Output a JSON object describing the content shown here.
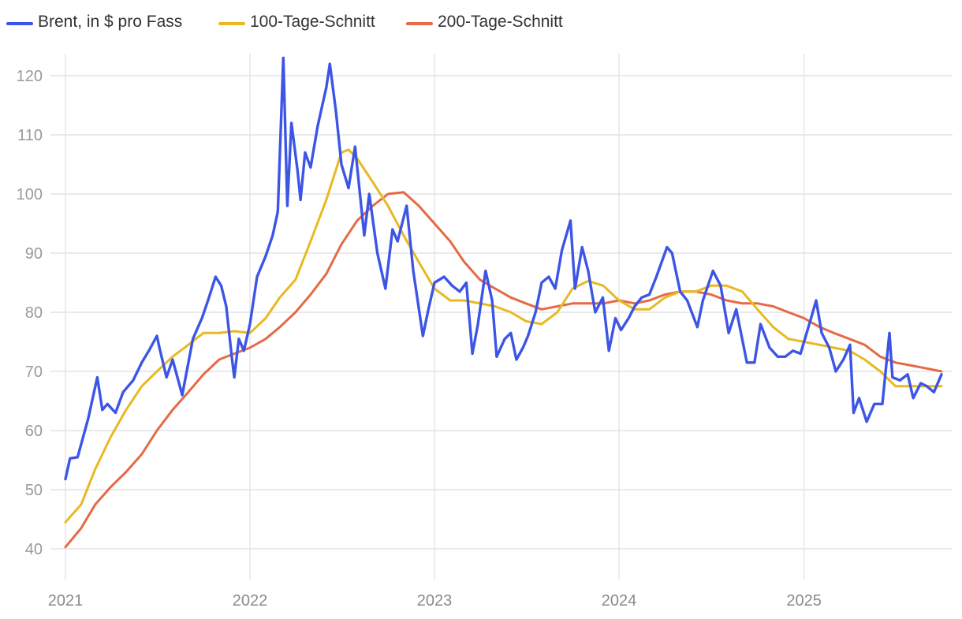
{
  "chart_data": {
    "type": "line",
    "title": "",
    "xlabel": "",
    "ylabel": "",
    "x_range": [
      "2021-01-01",
      "2025-09-30"
    ],
    "ylim": [
      37,
      123
    ],
    "y_ticks": [
      40,
      50,
      60,
      70,
      80,
      90,
      100,
      110,
      120
    ],
    "x_tick_labels": [
      "2021",
      "2022",
      "2023",
      "2024",
      "2025"
    ],
    "grid": "on",
    "legend_position": "top-left",
    "series": [
      {
        "name": "Brent, in $ pro Fass",
        "color": "#3d55e6",
        "x": [
          "2021-01-01",
          "2021-01-10",
          "2021-01-25",
          "2021-02-15",
          "2021-03-05",
          "2021-03-15",
          "2021-03-25",
          "2021-04-10",
          "2021-04-25",
          "2021-05-15",
          "2021-06-01",
          "2021-06-15",
          "2021-07-01",
          "2021-07-06",
          "2021-07-20",
          "2021-08-01",
          "2021-08-20",
          "2021-09-10",
          "2021-09-28",
          "2021-10-10",
          "2021-10-25",
          "2021-11-05",
          "2021-11-15",
          "2021-11-26",
          "2021-12-01",
          "2021-12-10",
          "2021-12-20",
          "2022-01-01",
          "2022-01-15",
          "2022-02-01",
          "2022-02-15",
          "2022-02-25",
          "2022-03-08",
          "2022-03-16",
          "2022-03-24",
          "2022-04-05",
          "2022-04-11",
          "2022-04-20",
          "2022-05-01",
          "2022-05-15",
          "2022-06-01",
          "2022-06-08",
          "2022-06-20",
          "2022-07-01",
          "2022-07-15",
          "2022-07-28",
          "2022-08-15",
          "2022-08-25",
          "2022-09-10",
          "2022-09-26",
          "2022-10-10",
          "2022-10-20",
          "2022-11-07",
          "2022-11-20",
          "2022-12-09",
          "2022-12-20",
          "2023-01-01",
          "2023-01-20",
          "2023-02-05",
          "2023-02-20",
          "2023-03-05",
          "2023-03-17",
          "2023-03-28",
          "2023-04-12",
          "2023-04-25",
          "2023-05-04",
          "2023-05-20",
          "2023-06-01",
          "2023-06-12",
          "2023-06-25",
          "2023-07-05",
          "2023-07-20",
          "2023-08-01",
          "2023-08-15",
          "2023-08-28",
          "2023-09-10",
          "2023-09-27",
          "2023-10-06",
          "2023-10-20",
          "2023-11-01",
          "2023-11-15",
          "2023-11-30",
          "2023-12-12",
          "2023-12-25",
          "2024-01-05",
          "2024-01-20",
          "2024-02-01",
          "2024-02-15",
          "2024-03-01",
          "2024-03-15",
          "2024-04-05",
          "2024-04-15",
          "2024-05-01",
          "2024-05-15",
          "2024-06-04",
          "2024-06-15",
          "2024-07-05",
          "2024-07-20",
          "2024-08-05",
          "2024-08-20",
          "2024-09-10",
          "2024-09-25",
          "2024-10-07",
          "2024-10-25",
          "2024-11-10",
          "2024-11-25",
          "2024-12-10",
          "2024-12-25",
          "2025-01-15",
          "2025-01-25",
          "2025-02-05",
          "2025-02-20",
          "2025-03-05",
          "2025-03-20",
          "2025-04-02",
          "2025-04-09",
          "2025-04-20",
          "2025-05-05",
          "2025-05-20",
          "2025-06-05",
          "2025-06-19",
          "2025-06-25",
          "2025-07-10",
          "2025-07-25",
          "2025-08-05",
          "2025-08-20",
          "2025-09-01",
          "2025-09-15",
          "2025-09-30"
        ],
        "values": [
          51.8,
          55.3,
          55.5,
          62.0,
          69.0,
          63.5,
          64.5,
          63.0,
          66.5,
          68.5,
          71.5,
          73.5,
          76.0,
          74.0,
          69.0,
          72.0,
          66.0,
          75.5,
          79.0,
          82.0,
          86.0,
          84.5,
          81.0,
          72.5,
          69.0,
          75.5,
          73.5,
          78.0,
          86.0,
          89.5,
          93.0,
          97.0,
          123.0,
          98.0,
          112.0,
          104.0,
          99.0,
          107.0,
          104.5,
          111.5,
          118.0,
          122.0,
          114.0,
          105.0,
          101.0,
          108.0,
          93.0,
          100.0,
          90.0,
          84.0,
          94.0,
          92.0,
          98.0,
          87.0,
          76.0,
          80.5,
          85.0,
          86.0,
          84.5,
          83.5,
          85.0,
          73.0,
          78.0,
          87.0,
          82.0,
          72.5,
          75.5,
          76.5,
          72.0,
          74.0,
          76.0,
          80.0,
          85.0,
          86.0,
          84.0,
          90.5,
          95.5,
          84.0,
          91.0,
          87.0,
          80.0,
          82.5,
          73.5,
          79.0,
          77.0,
          79.0,
          81.0,
          82.5,
          83.0,
          86.0,
          91.0,
          90.0,
          83.5,
          82.0,
          77.5,
          82.0,
          87.0,
          84.5,
          76.5,
          80.5,
          71.5,
          71.5,
          78.0,
          74.0,
          72.5,
          72.5,
          73.5,
          73.0,
          79.0,
          82.0,
          76.5,
          74.0,
          70.0,
          72.0,
          74.5,
          63.0,
          65.5,
          61.5,
          64.5,
          64.5,
          76.5,
          69.0,
          68.5,
          69.5,
          65.5,
          68.0,
          67.5,
          66.5,
          69.5
        ]
      },
      {
        "name": "100-Tage-Schnitt",
        "color": "#e8b923",
        "x": [
          "2021-01-01",
          "2021-02-01",
          "2021-03-01",
          "2021-04-01",
          "2021-05-01",
          "2021-06-01",
          "2021-07-01",
          "2021-08-01",
          "2021-09-01",
          "2021-10-01",
          "2021-11-01",
          "2021-12-01",
          "2022-01-01",
          "2022-02-01",
          "2022-03-01",
          "2022-04-01",
          "2022-05-01",
          "2022-06-01",
          "2022-07-01",
          "2022-07-15",
          "2022-08-01",
          "2022-09-01",
          "2022-10-01",
          "2022-11-01",
          "2022-12-01",
          "2023-01-01",
          "2023-02-01",
          "2023-03-01",
          "2023-04-01",
          "2023-05-01",
          "2023-06-01",
          "2023-07-01",
          "2023-08-01",
          "2023-09-01",
          "2023-10-01",
          "2023-11-01",
          "2023-12-01",
          "2024-01-01",
          "2024-02-01",
          "2024-03-01",
          "2024-04-01",
          "2024-05-01",
          "2024-06-01",
          "2024-07-01",
          "2024-08-01",
          "2024-09-01",
          "2024-10-01",
          "2024-11-01",
          "2024-12-01",
          "2025-01-01",
          "2025-02-01",
          "2025-03-01",
          "2025-04-01",
          "2025-05-01",
          "2025-06-01",
          "2025-07-01",
          "2025-08-01",
          "2025-09-01",
          "2025-09-30"
        ],
        "values": [
          44.5,
          47.5,
          53.5,
          59.0,
          63.5,
          67.5,
          70.0,
          72.5,
          74.5,
          76.5,
          76.5,
          76.8,
          76.5,
          79.0,
          82.5,
          85.5,
          92.0,
          99.0,
          107.0,
          107.5,
          106.0,
          102.0,
          98.0,
          93.0,
          88.5,
          84.0,
          82.0,
          82.0,
          81.5,
          81.0,
          80.0,
          78.5,
          78.0,
          80.0,
          84.0,
          85.3,
          84.5,
          82.0,
          80.5,
          80.5,
          82.5,
          83.5,
          83.5,
          84.5,
          84.5,
          83.5,
          80.5,
          77.5,
          75.5,
          75.0,
          74.5,
          74.0,
          73.5,
          72.0,
          70.0,
          67.5,
          67.5,
          67.5,
          67.5
        ]
      },
      {
        "name": "200-Tage-Schnitt",
        "color": "#e56a45",
        "x": [
          "2021-01-01",
          "2021-02-01",
          "2021-03-01",
          "2021-04-01",
          "2021-05-01",
          "2021-06-01",
          "2021-07-01",
          "2021-08-01",
          "2021-09-01",
          "2021-10-01",
          "2021-11-01",
          "2021-12-01",
          "2022-01-01",
          "2022-02-01",
          "2022-03-01",
          "2022-04-01",
          "2022-05-01",
          "2022-06-01",
          "2022-07-01",
          "2022-08-01",
          "2022-09-01",
          "2022-10-01",
          "2022-11-01",
          "2022-12-01",
          "2023-01-01",
          "2023-02-01",
          "2023-03-01",
          "2023-04-01",
          "2023-05-01",
          "2023-06-01",
          "2023-07-01",
          "2023-08-01",
          "2023-09-01",
          "2023-10-01",
          "2023-11-01",
          "2023-12-01",
          "2024-01-01",
          "2024-02-01",
          "2024-03-01",
          "2024-04-01",
          "2024-05-01",
          "2024-06-01",
          "2024-07-01",
          "2024-08-01",
          "2024-09-01",
          "2024-10-01",
          "2024-11-01",
          "2024-12-01",
          "2025-01-01",
          "2025-02-01",
          "2025-03-01",
          "2025-04-01",
          "2025-05-01",
          "2025-06-01",
          "2025-07-01",
          "2025-08-01",
          "2025-09-01",
          "2025-09-30"
        ],
        "values": [
          40.3,
          43.5,
          47.5,
          50.5,
          53.0,
          56.0,
          60.0,
          63.5,
          66.5,
          69.5,
          72.0,
          73.0,
          74.0,
          75.5,
          77.5,
          80.0,
          83.0,
          86.5,
          91.5,
          95.5,
          98.0,
          100.0,
          100.3,
          98.0,
          95.0,
          92.0,
          88.5,
          85.5,
          84.0,
          82.5,
          81.5,
          80.5,
          81.0,
          81.5,
          81.5,
          81.5,
          82.0,
          81.5,
          82.0,
          83.0,
          83.5,
          83.5,
          83.0,
          82.0,
          81.5,
          81.5,
          81.0,
          80.0,
          79.0,
          77.5,
          76.5,
          75.5,
          74.5,
          72.5,
          71.5,
          71.0,
          70.5,
          70.0
        ]
      }
    ]
  }
}
